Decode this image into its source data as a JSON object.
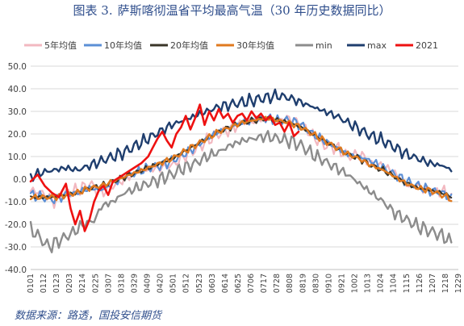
{
  "figure": {
    "number": "图表 3.",
    "title": "萨斯喀彻温省平均最高气温（30 年历史数据同比）",
    "source": "数据来源：路透，国投安信期货"
  },
  "chart_data": {
    "type": "line",
    "title": "萨斯喀彻温省平均最高气温（30 年历史数据同比）",
    "xlabel": "",
    "ylabel": "",
    "ylim": [
      -40,
      50
    ],
    "yticks": [
      -40,
      -30,
      -20,
      -10,
      0,
      10,
      20,
      30,
      40,
      50
    ],
    "ytick_labels": [
      "-40.0",
      "-30.0",
      "-20.0",
      "-10.0",
      "0.0",
      "10.0",
      "20.0",
      "30.0",
      "40.0",
      "50.0"
    ],
    "xticks": [
      "0101",
      "0112",
      "0123",
      "0203",
      "0214",
      "0225",
      "0307",
      "0318",
      "0329",
      "0409",
      "0420",
      "0501",
      "0512",
      "0523",
      "0603",
      "0614",
      "0625",
      "0706",
      "0717",
      "0728",
      "0808",
      "0819",
      "0830",
      "0910",
      "0921",
      "1002",
      "1013",
      "1024",
      "1104",
      "1115",
      "1126",
      "1207",
      "1218",
      "1229"
    ],
    "legend_position": "top",
    "grid": "horizontal",
    "series": [
      {
        "name": "5年均值",
        "color": "#f2b8c0",
        "width": 2.2,
        "points": [
          [
            0,
            -5
          ],
          [
            10,
            -6
          ],
          [
            20,
            -10
          ],
          [
            30,
            -6
          ],
          [
            40,
            -5
          ],
          [
            50,
            -2
          ],
          [
            60,
            -6
          ],
          [
            70,
            -3
          ],
          [
            80,
            0
          ],
          [
            90,
            3
          ],
          [
            100,
            4
          ],
          [
            110,
            5
          ],
          [
            120,
            6
          ],
          [
            130,
            10
          ],
          [
            140,
            13
          ],
          [
            150,
            17
          ],
          [
            160,
            20
          ],
          [
            170,
            22
          ],
          [
            180,
            25
          ],
          [
            190,
            26
          ],
          [
            200,
            27
          ],
          [
            210,
            26
          ],
          [
            220,
            27
          ],
          [
            230,
            25
          ],
          [
            240,
            19
          ],
          [
            250,
            15
          ],
          [
            260,
            14
          ],
          [
            270,
            10
          ],
          [
            280,
            11
          ],
          [
            290,
            7
          ],
          [
            300,
            6
          ],
          [
            310,
            3
          ],
          [
            320,
            -3
          ],
          [
            330,
            -3
          ],
          [
            340,
            -6
          ],
          [
            350,
            -5
          ],
          [
            359,
            -9
          ]
        ]
      },
      {
        "name": "10年均值",
        "color": "#5b8fd6",
        "width": 2.2,
        "points": [
          [
            0,
            -7
          ],
          [
            10,
            -8
          ],
          [
            20,
            -9
          ],
          [
            30,
            -7
          ],
          [
            40,
            -6
          ],
          [
            50,
            -4
          ],
          [
            60,
            -5
          ],
          [
            70,
            -2
          ],
          [
            80,
            1
          ],
          [
            90,
            3
          ],
          [
            100,
            5
          ],
          [
            110,
            6
          ],
          [
            120,
            8
          ],
          [
            130,
            11
          ],
          [
            140,
            14
          ],
          [
            150,
            18
          ],
          [
            160,
            21
          ],
          [
            170,
            23
          ],
          [
            180,
            25
          ],
          [
            190,
            26
          ],
          [
            200,
            27
          ],
          [
            210,
            26
          ],
          [
            220,
            26
          ],
          [
            230,
            24
          ],
          [
            240,
            20
          ],
          [
            250,
            17
          ],
          [
            260,
            14
          ],
          [
            270,
            11
          ],
          [
            280,
            10
          ],
          [
            290,
            8
          ],
          [
            300,
            5
          ],
          [
            310,
            2
          ],
          [
            320,
            -1
          ],
          [
            330,
            -3
          ],
          [
            340,
            -5
          ],
          [
            350,
            -6
          ],
          [
            359,
            -9
          ]
        ]
      },
      {
        "name": "20年均值",
        "color": "#3a3528",
        "width": 2.0,
        "points": [
          [
            0,
            -8
          ],
          [
            10,
            -8
          ],
          [
            20,
            -8
          ],
          [
            30,
            -7
          ],
          [
            40,
            -6
          ],
          [
            50,
            -4
          ],
          [
            60,
            -3
          ],
          [
            70,
            -1
          ],
          [
            80,
            1
          ],
          [
            90,
            3
          ],
          [
            100,
            5
          ],
          [
            110,
            7
          ],
          [
            120,
            9
          ],
          [
            130,
            12
          ],
          [
            140,
            15
          ],
          [
            150,
            18
          ],
          [
            160,
            21
          ],
          [
            170,
            23
          ],
          [
            180,
            25
          ],
          [
            190,
            26
          ],
          [
            200,
            27
          ],
          [
            210,
            26
          ],
          [
            220,
            25
          ],
          [
            230,
            23
          ],
          [
            240,
            20
          ],
          [
            250,
            17
          ],
          [
            260,
            14
          ],
          [
            270,
            11
          ],
          [
            280,
            9
          ],
          [
            290,
            6
          ],
          [
            300,
            4
          ],
          [
            310,
            1
          ],
          [
            320,
            -2
          ],
          [
            330,
            -4
          ],
          [
            340,
            -5
          ],
          [
            350,
            -6
          ],
          [
            359,
            -8
          ]
        ]
      },
      {
        "name": "30年均值",
        "color": "#e07a1f",
        "width": 2.4,
        "points": [
          [
            0,
            -8
          ],
          [
            10,
            -8
          ],
          [
            20,
            -8
          ],
          [
            30,
            -7
          ],
          [
            40,
            -6
          ],
          [
            50,
            -4
          ],
          [
            60,
            -3
          ],
          [
            70,
            -1
          ],
          [
            80,
            1
          ],
          [
            90,
            3
          ],
          [
            100,
            5
          ],
          [
            110,
            7
          ],
          [
            120,
            9
          ],
          [
            130,
            12
          ],
          [
            140,
            15
          ],
          [
            150,
            18
          ],
          [
            160,
            21
          ],
          [
            170,
            23
          ],
          [
            180,
            25
          ],
          [
            190,
            26
          ],
          [
            200,
            27
          ],
          [
            210,
            26
          ],
          [
            220,
            25
          ],
          [
            230,
            23
          ],
          [
            240,
            20
          ],
          [
            250,
            17
          ],
          [
            260,
            14
          ],
          [
            270,
            11
          ],
          [
            280,
            9
          ],
          [
            290,
            6
          ],
          [
            300,
            4
          ],
          [
            310,
            1
          ],
          [
            320,
            -2
          ],
          [
            330,
            -4
          ],
          [
            340,
            -5
          ],
          [
            350,
            -7
          ],
          [
            359,
            -9
          ]
        ]
      },
      {
        "name": "min",
        "color": "#8c8c8c",
        "width": 2.4,
        "points": [
          [
            0,
            -22
          ],
          [
            8,
            -26
          ],
          [
            15,
            -30
          ],
          [
            25,
            -27
          ],
          [
            35,
            -24
          ],
          [
            45,
            -20
          ],
          [
            55,
            -18
          ],
          [
            60,
            -12
          ],
          [
            70,
            -10
          ],
          [
            80,
            -6
          ],
          [
            90,
            -4
          ],
          [
            100,
            -2
          ],
          [
            110,
            0
          ],
          [
            120,
            2
          ],
          [
            130,
            5
          ],
          [
            140,
            7
          ],
          [
            150,
            10
          ],
          [
            160,
            12
          ],
          [
            170,
            15
          ],
          [
            180,
            17
          ],
          [
            190,
            18
          ],
          [
            200,
            19
          ],
          [
            210,
            18
          ],
          [
            220,
            17
          ],
          [
            230,
            15
          ],
          [
            240,
            11
          ],
          [
            250,
            8
          ],
          [
            260,
            5
          ],
          [
            270,
            2
          ],
          [
            280,
            -2
          ],
          [
            290,
            -6
          ],
          [
            300,
            -10
          ],
          [
            310,
            -15
          ],
          [
            320,
            -18
          ],
          [
            330,
            -21
          ],
          [
            340,
            -23
          ],
          [
            350,
            -25
          ],
          [
            359,
            -28
          ]
        ]
      },
      {
        "name": "max",
        "color": "#1f3e6e",
        "width": 2.4,
        "points": [
          [
            0,
            1
          ],
          [
            10,
            3
          ],
          [
            20,
            4
          ],
          [
            30,
            5
          ],
          [
            40,
            4
          ],
          [
            50,
            6
          ],
          [
            60,
            8
          ],
          [
            70,
            10
          ],
          [
            80,
            12
          ],
          [
            90,
            15
          ],
          [
            100,
            18
          ],
          [
            110,
            21
          ],
          [
            120,
            24
          ],
          [
            130,
            26
          ],
          [
            140,
            28
          ],
          [
            150,
            30
          ],
          [
            160,
            32
          ],
          [
            170,
            33
          ],
          [
            180,
            34
          ],
          [
            190,
            35
          ],
          [
            200,
            36
          ],
          [
            210,
            37
          ],
          [
            220,
            36
          ],
          [
            230,
            34
          ],
          [
            240,
            32
          ],
          [
            250,
            30
          ],
          [
            260,
            28
          ],
          [
            270,
            25
          ],
          [
            280,
            22
          ],
          [
            290,
            19
          ],
          [
            300,
            17
          ],
          [
            310,
            14
          ],
          [
            320,
            11
          ],
          [
            330,
            9
          ],
          [
            340,
            7
          ],
          [
            350,
            6
          ],
          [
            359,
            4
          ]
        ]
      },
      {
        "name": "2021",
        "color": "#ee1111",
        "width": 2.6,
        "points": [
          [
            0,
            -1
          ],
          [
            6,
            2
          ],
          [
            12,
            -3
          ],
          [
            18,
            -6
          ],
          [
            24,
            -8
          ],
          [
            30,
            -2
          ],
          [
            34,
            -13
          ],
          [
            38,
            -20
          ],
          [
            42,
            -14
          ],
          [
            46,
            -23
          ],
          [
            50,
            -18
          ],
          [
            54,
            -10
          ],
          [
            58,
            -5
          ],
          [
            62,
            -3
          ],
          [
            66,
            -7
          ],
          [
            70,
            -1
          ],
          [
            76,
            1
          ],
          [
            82,
            3
          ],
          [
            88,
            5
          ],
          [
            94,
            7
          ],
          [
            100,
            10
          ],
          [
            104,
            14
          ],
          [
            108,
            18
          ],
          [
            112,
            21
          ],
          [
            116,
            17
          ],
          [
            120,
            14
          ],
          [
            124,
            20
          ],
          [
            128,
            23
          ],
          [
            132,
            28
          ],
          [
            136,
            22
          ],
          [
            140,
            27
          ],
          [
            144,
            33
          ],
          [
            148,
            24
          ],
          [
            152,
            30
          ],
          [
            156,
            26
          ],
          [
            160,
            31
          ],
          [
            164,
            27
          ],
          [
            168,
            29
          ],
          [
            172,
            25
          ],
          [
            176,
            28
          ],
          [
            180,
            29
          ],
          [
            184,
            26
          ],
          [
            188,
            30
          ],
          [
            192,
            27
          ],
          [
            196,
            29
          ],
          [
            200,
            26
          ],
          [
            204,
            28
          ],
          [
            208,
            24
          ],
          [
            212,
            25
          ],
          [
            216,
            21
          ],
          [
            220,
            25
          ],
          [
            224,
            19
          ],
          [
            228,
            21
          ]
        ]
      }
    ]
  }
}
